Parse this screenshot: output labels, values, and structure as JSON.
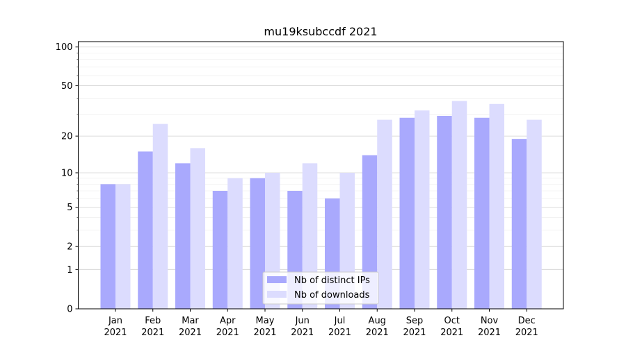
{
  "chart_data": {
    "type": "bar",
    "title": "mu19ksubccdf 2021",
    "xlabel": "",
    "ylabel": "",
    "yscale": "symlog",
    "ylim": [
      0,
      110
    ],
    "yticks": [
      0,
      1,
      2,
      5,
      10,
      20,
      50,
      100
    ],
    "ytick_labels": [
      "0",
      "1",
      "2",
      "5",
      "10",
      "20",
      "50",
      "100"
    ],
    "categories": [
      [
        "Jan",
        "2021"
      ],
      [
        "Feb",
        "2021"
      ],
      [
        "Mar",
        "2021"
      ],
      [
        "Apr",
        "2021"
      ],
      [
        "May",
        "2021"
      ],
      [
        "Jun",
        "2021"
      ],
      [
        "Jul",
        "2021"
      ],
      [
        "Aug",
        "2021"
      ],
      [
        "Sep",
        "2021"
      ],
      [
        "Oct",
        "2021"
      ],
      [
        "Nov",
        "2021"
      ],
      [
        "Dec",
        "2021"
      ]
    ],
    "series": [
      {
        "name": "Nb of distinct IPs",
        "color": "#a9a9fd",
        "values": [
          8,
          15,
          12,
          7,
          9,
          7,
          6,
          14,
          28,
          29,
          28,
          19
        ]
      },
      {
        "name": "Nb of downloads",
        "color": "#dcdcfe",
        "values": [
          8,
          25,
          16,
          9,
          10,
          12,
          10,
          27,
          32,
          38,
          36,
          27
        ]
      }
    ],
    "grid": true,
    "legend_position": "bottom-center"
  }
}
